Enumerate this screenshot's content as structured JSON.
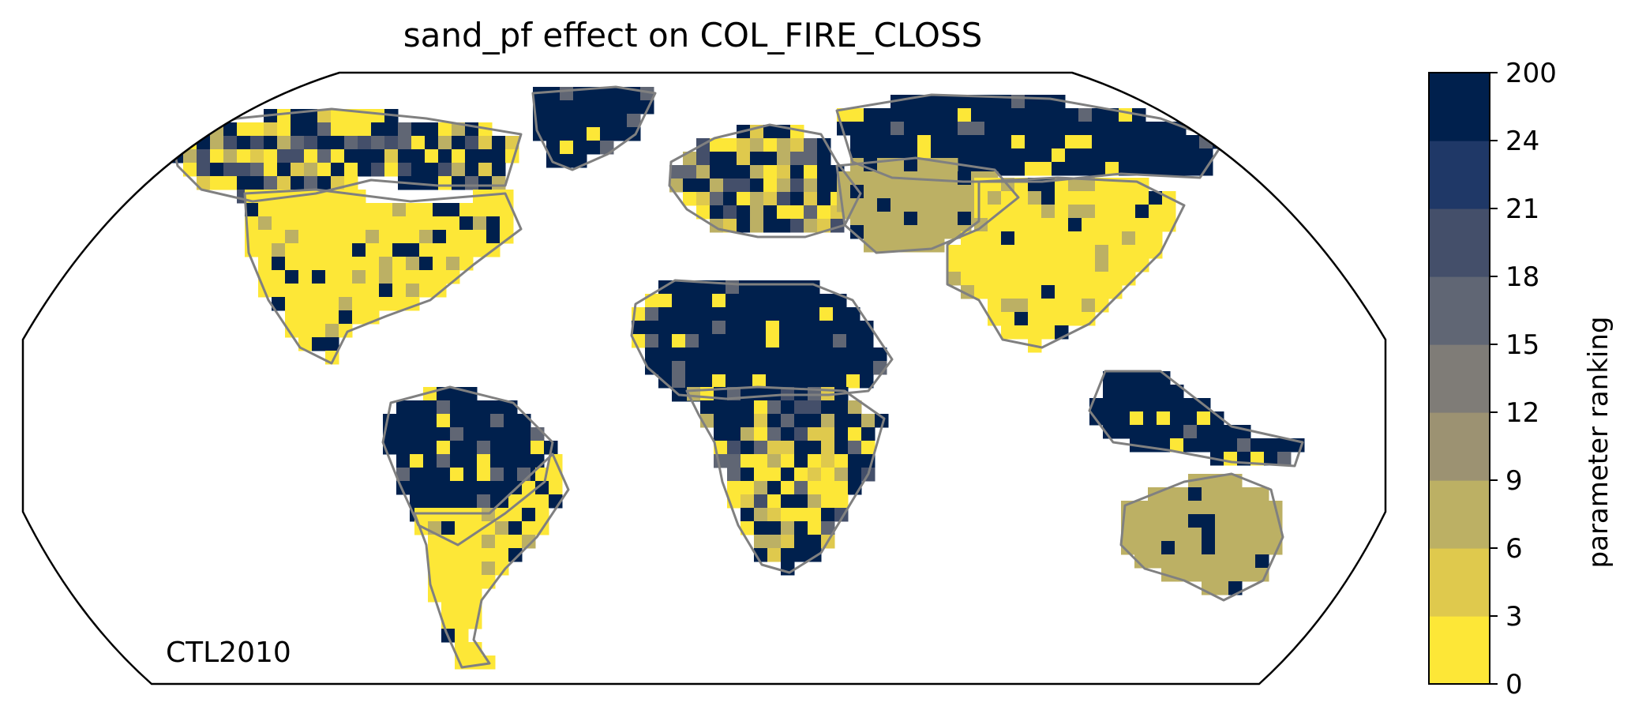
{
  "title": "sand_pf effect on COL_FIRE_CLOSS",
  "run_label": "CTL2010",
  "colorbar": {
    "label": "parameter ranking",
    "ticks": [
      "0",
      "3",
      "6",
      "9",
      "12",
      "15",
      "18",
      "21",
      "24",
      "200"
    ],
    "colors": [
      "#fde737",
      "#dfc94d",
      "#bcb064",
      "#9c9272",
      "#7f7c77",
      "#606674",
      "#444f6a",
      "#1f3867",
      "#00204d"
    ]
  },
  "map": {
    "projection": "Robinson",
    "coastline_color": "#808080",
    "region_ranks": {
      "north_america_north": "mixed",
      "north_america_south": "0-3",
      "greenland": "200",
      "south_america_amazon": "200",
      "south_america_south": "0-3",
      "europe": "mixed",
      "siberia": "200",
      "central_asia": "6-12",
      "east_asia": "0-3",
      "north_africa": "200",
      "southern_africa": "mixed",
      "australia": "6-12",
      "maritime_continent": "200"
    }
  }
}
